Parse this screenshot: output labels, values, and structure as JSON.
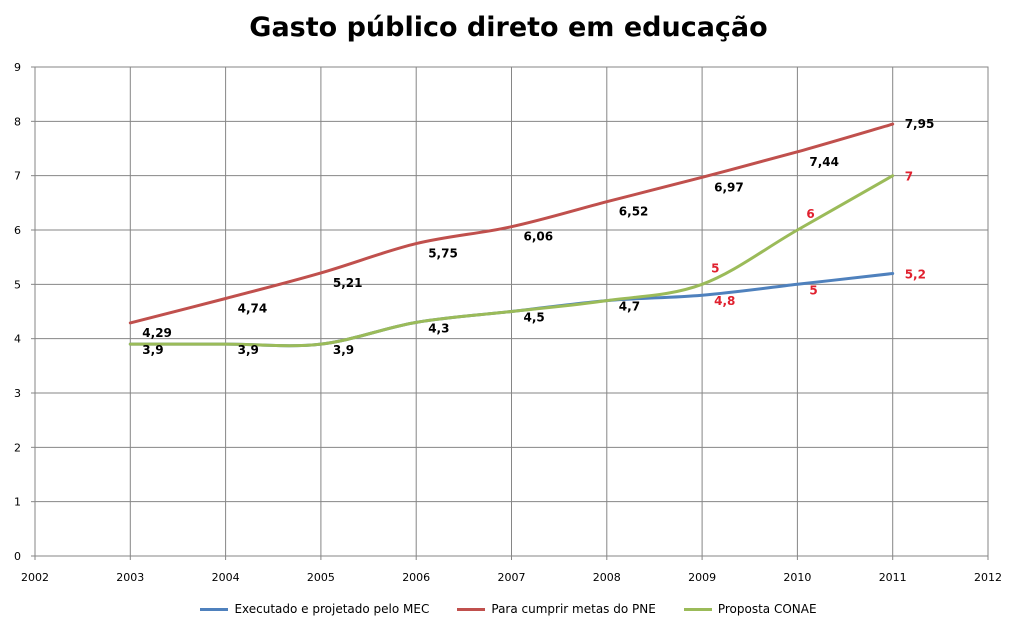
{
  "chart_data": {
    "type": "line",
    "title": "Gasto público direto em educação",
    "xlim": [
      2002,
      2012
    ],
    "ylim": [
      0,
      9
    ],
    "xticks": [
      "2002",
      "2003",
      "2004",
      "2005",
      "2006",
      "2007",
      "2008",
      "2009",
      "2010",
      "2011",
      "2012"
    ],
    "yticks": [
      "0",
      "1",
      "2",
      "3",
      "4",
      "5",
      "6",
      "7",
      "8",
      "9"
    ],
    "grid": true,
    "legend_position": "bottom",
    "series": [
      {
        "name": "Executado e projetado pelo MEC",
        "color": "#4F81BD",
        "x": [
          2003,
          2004,
          2005,
          2006,
          2007,
          2008,
          2009,
          2010,
          2011
        ],
        "y": [
          3.9,
          3.9,
          3.9,
          4.3,
          4.5,
          4.7,
          4.8,
          5.0,
          5.2
        ],
        "labels": [
          "3,9",
          "3,9",
          "3,9",
          "4,3",
          "4,5",
          "4,7",
          "4,8",
          "5",
          "5,2"
        ],
        "label_colors": [
          "#000000",
          "#000000",
          "#000000",
          "#000000",
          "#000000",
          "#000000",
          "#E0202E",
          "#E0202E",
          "#E0202E"
        ]
      },
      {
        "name": "Para cumprir metas do PNE",
        "color": "#C0504D",
        "x": [
          2003,
          2004,
          2005,
          2006,
          2007,
          2008,
          2009,
          2010,
          2011
        ],
        "y": [
          4.29,
          4.74,
          5.21,
          5.75,
          6.06,
          6.52,
          6.97,
          7.44,
          7.95
        ],
        "labels": [
          "4,29",
          "4,74",
          "5,21",
          "5,75",
          "6,06",
          "6,52",
          "6,97",
          "7,44",
          "7,95"
        ],
        "label_colors": [
          "#000000",
          "#000000",
          "#000000",
          "#000000",
          "#000000",
          "#000000",
          "#000000",
          "#000000",
          "#000000"
        ]
      },
      {
        "name": "Proposta CONAE",
        "color": "#9BBB59",
        "x": [
          2003,
          2004,
          2005,
          2006,
          2007,
          2008,
          2009,
          2010,
          2011
        ],
        "y": [
          3.9,
          3.9,
          3.9,
          4.3,
          4.5,
          4.7,
          5.0,
          6.0,
          7.0
        ],
        "labels": [
          "",
          "",
          "",
          "",
          "",
          "",
          "5",
          "6",
          "7"
        ],
        "label_colors": [
          "#E0202E",
          "#E0202E",
          "#E0202E",
          "#E0202E",
          "#E0202E",
          "#E0202E",
          "#E0202E",
          "#E0202E",
          "#E0202E"
        ]
      }
    ]
  }
}
